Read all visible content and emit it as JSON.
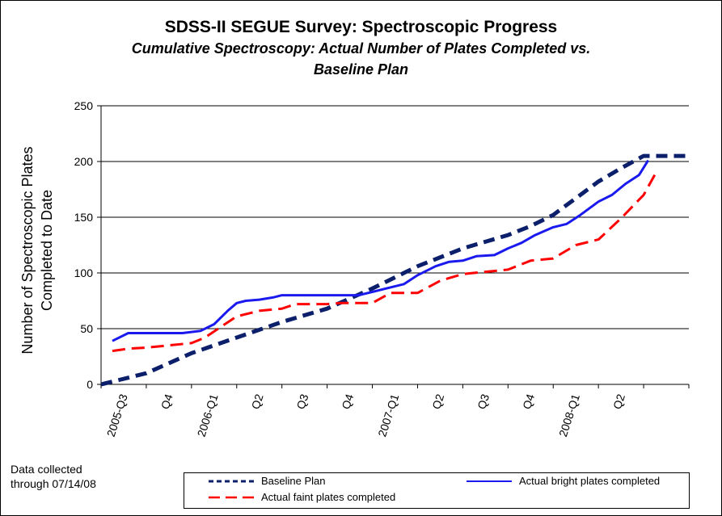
{
  "chart_data": {
    "type": "line",
    "title": "SDSS-II SEGUE Survey:  Spectroscopic Progress",
    "subtitle_line1": "Cumulative Spectroscopy: Actual Number of Plates Completed vs.",
    "subtitle_line2": "Baseline Plan",
    "ylabel_line1": "Number of Spectroscopic Plates",
    "ylabel_line2": "Completed to Date",
    "xlabel": "",
    "ylim": [
      0,
      250
    ],
    "yticks": [
      0,
      50,
      100,
      150,
      200,
      250
    ],
    "xlim": [
      0,
      13
    ],
    "x_tick_labels": [
      "2005-Q3",
      "Q4",
      "2006-Q1",
      "Q2",
      "Q3",
      "Q4",
      "2007-Q1",
      "Q2",
      "Q3",
      "Q4",
      "2008-Q1",
      "Q2"
    ],
    "grid": "horizontal",
    "legend_position": "bottom",
    "series": [
      {
        "name": "Baseline  Plan",
        "color": "#0b1f6b",
        "style": "dashed-thick",
        "x": [
          0,
          0.4,
          1,
          1.5,
          2,
          2.5,
          3,
          3.5,
          4,
          4.5,
          5,
          5.5,
          6,
          6.5,
          7,
          7.5,
          8,
          8.5,
          9,
          9.5,
          10,
          10.5,
          11,
          11.5,
          12,
          12.5,
          13
        ],
        "y": [
          0,
          4,
          10,
          19,
          28,
          35,
          42,
          49,
          56,
          62,
          68,
          77,
          86,
          96,
          106,
          114,
          122,
          128,
          134,
          142,
          152,
          167,
          182,
          194,
          205,
          205,
          205
        ]
      },
      {
        "name": "Actual  bright plates completed",
        "color": "#1a1aee",
        "style": "solid",
        "x": [
          0.25,
          0.6,
          1.0,
          1.5,
          1.8,
          2.0,
          2.2,
          2.5,
          2.8,
          3.0,
          3.2,
          3.5,
          3.8,
          4.0,
          4.3,
          4.7,
          5.0,
          5.3,
          5.7,
          6.0,
          6.3,
          6.7,
          7.0,
          7.4,
          7.7,
          8.0,
          8.3,
          8.7,
          9.0,
          9.3,
          9.6,
          10.0,
          10.3,
          10.6,
          11.0,
          11.3,
          11.6,
          11.9,
          12.1
        ],
        "y": [
          39,
          46,
          46,
          46,
          46,
          47,
          48,
          54,
          66,
          73,
          75,
          76,
          78,
          80,
          80,
          80,
          80,
          80,
          80,
          83,
          86,
          90,
          98,
          106,
          110,
          111,
          115,
          116,
          122,
          127,
          134,
          141,
          144,
          152,
          164,
          170,
          180,
          188,
          201
        ]
      },
      {
        "name": "Actual  faint plates completed",
        "color": "#ff0000",
        "style": "dashed",
        "x": [
          0.25,
          0.6,
          1.0,
          1.5,
          2.0,
          2.3,
          2.7,
          3.0,
          3.5,
          4.0,
          4.3,
          4.6,
          5.0,
          5.3,
          5.6,
          6.0,
          6.4,
          7.0,
          7.5,
          8.0,
          8.5,
          9.0,
          9.5,
          10.0,
          10.5,
          11.0,
          11.5,
          12.0,
          12.3
        ],
        "y": [
          30,
          32,
          33,
          35,
          37,
          42,
          53,
          61,
          66,
          68,
          72,
          72,
          72,
          73,
          73,
          73,
          82,
          82,
          93,
          99,
          101,
          103,
          111,
          113,
          125,
          130,
          149,
          170,
          192
        ]
      }
    ]
  },
  "note_line1": "Data collected",
  "note_line2": "through 07/14/08"
}
